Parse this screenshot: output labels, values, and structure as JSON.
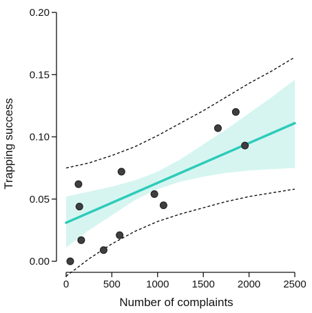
{
  "chart_data": {
    "type": "scatter",
    "title": "",
    "xlabel": "Number of complaints",
    "ylabel": "Trapping success",
    "xlim": [
      0,
      2500
    ],
    "ylim": [
      0,
      0.2
    ],
    "x_ticks": [
      0,
      500,
      1000,
      1500,
      2000,
      2500
    ],
    "x_tick_labels": [
      "0",
      "500",
      "1000",
      "1500",
      "2000",
      "2500"
    ],
    "y_ticks": [
      0,
      0.05,
      0.1,
      0.15,
      0.2
    ],
    "y_tick_labels": [
      "0.00",
      "0.05",
      "0.10",
      "0.15",
      "0.20"
    ],
    "grid": false,
    "points": [
      {
        "x": 45,
        "y": 0.0
      },
      {
        "x": 135,
        "y": 0.062
      },
      {
        "x": 145,
        "y": 0.044
      },
      {
        "x": 165,
        "y": 0.017
      },
      {
        "x": 410,
        "y": 0.009
      },
      {
        "x": 585,
        "y": 0.021
      },
      {
        "x": 605,
        "y": 0.072
      },
      {
        "x": 965,
        "y": 0.054
      },
      {
        "x": 1065,
        "y": 0.045
      },
      {
        "x": 1660,
        "y": 0.107
      },
      {
        "x": 1855,
        "y": 0.12
      },
      {
        "x": 1955,
        "y": 0.093
      }
    ],
    "fit_line": {
      "x": [
        0,
        2500
      ],
      "y": [
        0.031,
        0.111
      ]
    },
    "confidence_band": {
      "x": [
        0,
        250,
        500,
        750,
        1000,
        1250,
        1500,
        1750,
        2000,
        2250,
        2500
      ],
      "lower": [
        0.011,
        0.025,
        0.037,
        0.049,
        0.058,
        0.064,
        0.068,
        0.071,
        0.073,
        0.074,
        0.075
      ],
      "upper": [
        0.052,
        0.056,
        0.06,
        0.065,
        0.072,
        0.082,
        0.094,
        0.106,
        0.119,
        0.132,
        0.146
      ]
    },
    "prediction_interval": {
      "x": [
        0,
        250,
        500,
        750,
        1000,
        1250,
        1500,
        1750,
        2000,
        2250,
        2500
      ],
      "lower": [
        -0.012,
        0.002,
        0.014,
        0.024,
        0.032,
        0.038,
        0.043,
        0.048,
        0.052,
        0.055,
        0.058
      ],
      "upper": [
        0.075,
        0.079,
        0.085,
        0.092,
        0.101,
        0.111,
        0.121,
        0.132,
        0.143,
        0.153,
        0.164
      ]
    },
    "colors": {
      "points": "#3f3f3f",
      "fit_line": "#2dcbb8",
      "band": "#d6f5f1",
      "interval": "#111111",
      "axis": "#111111"
    }
  }
}
